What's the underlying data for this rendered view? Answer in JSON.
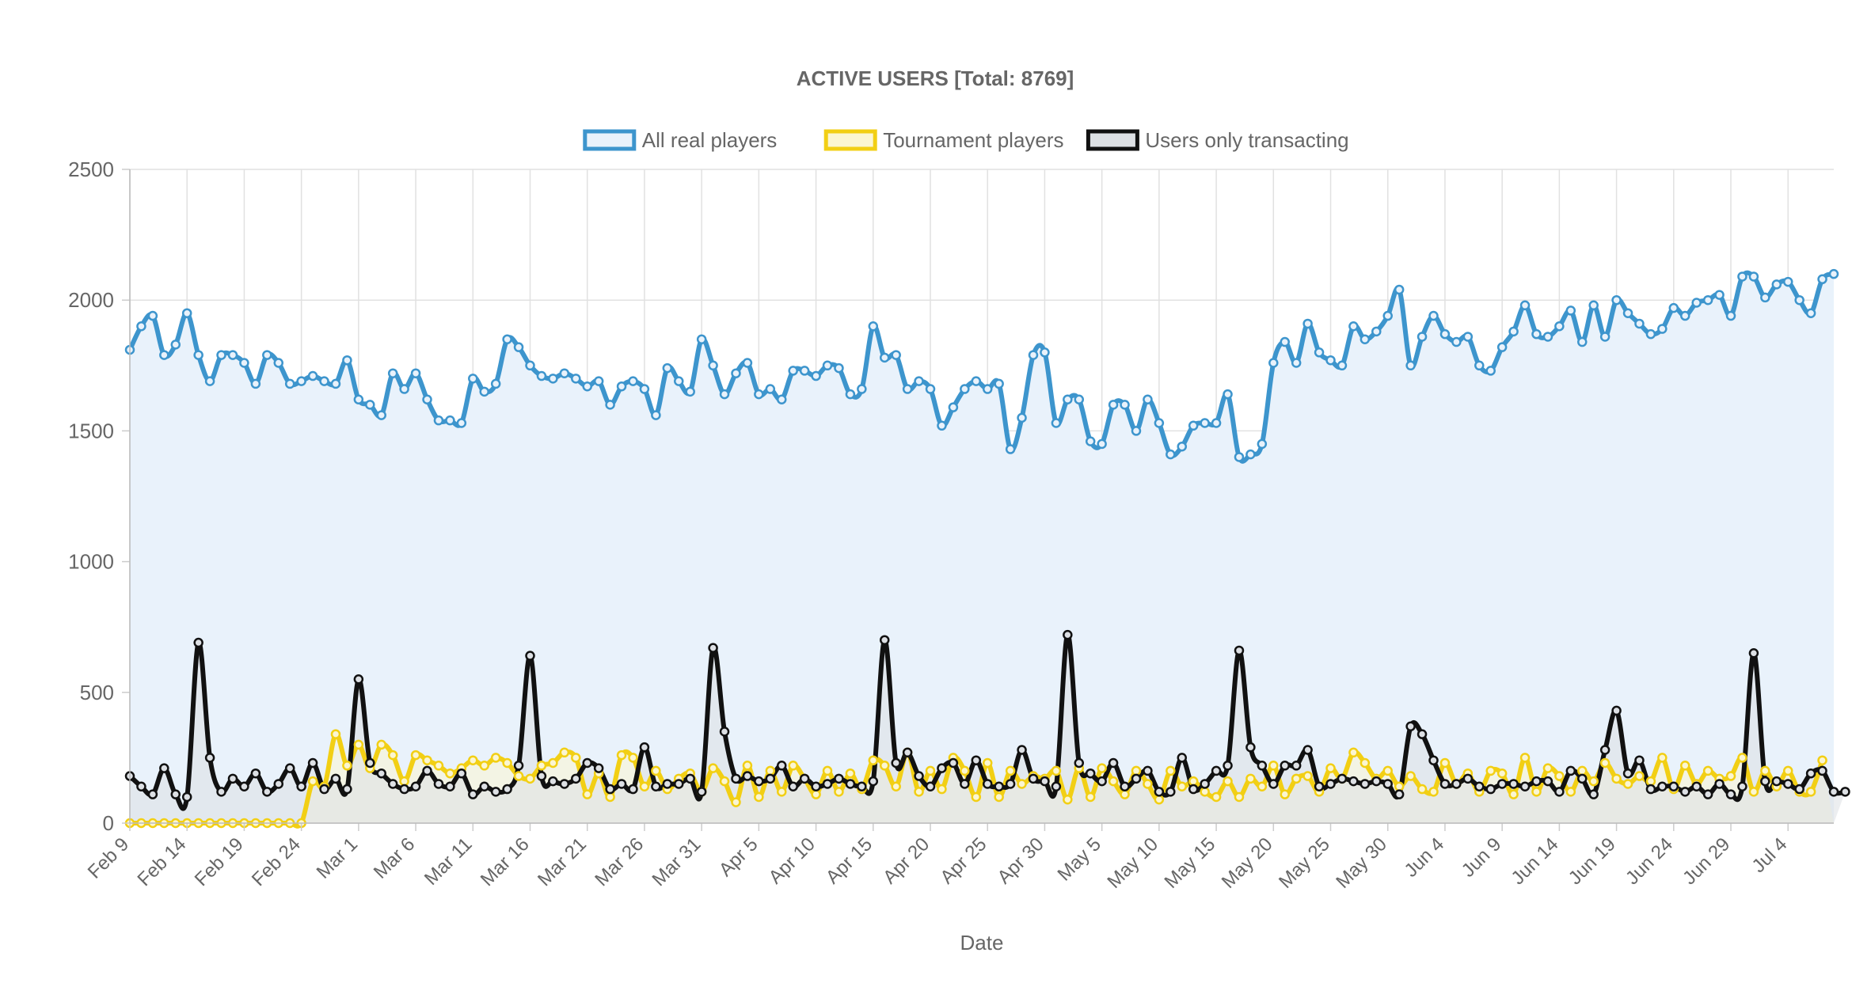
{
  "chart_data": {
    "type": "line",
    "title": "ACTIVE USERS [Total: 8769]",
    "xlabel": "Date",
    "ylabel": "",
    "ylim": [
      0,
      2500
    ],
    "yticks": [
      0,
      500,
      1000,
      1500,
      2000,
      2500
    ],
    "x_start": "2023-02-09",
    "x_tick_labels": [
      "Feb 9",
      "Feb 14",
      "Feb 19",
      "Feb 24",
      "Mar 1",
      "Mar 6",
      "Mar 11",
      "Mar 16",
      "Mar 21",
      "Mar 26",
      "Mar 31",
      "Apr 5",
      "Apr 10",
      "Apr 15",
      "Apr 20",
      "Apr 25",
      "Apr 30",
      "May 5",
      "May 10",
      "May 15",
      "May 20",
      "May 25",
      "May 30",
      "Jun 4",
      "Jun 9",
      "Jun 14",
      "Jun 19",
      "Jun 24",
      "Jun 29",
      "Jul 4"
    ],
    "grid": true,
    "legend_position": "top",
    "series": [
      {
        "name": "All real players",
        "color": "#3d95cd",
        "fill": "#e9f2fb",
        "values": [
          1810,
          1900,
          1940,
          1790,
          1830,
          1950,
          1790,
          1690,
          1790,
          1790,
          1760,
          1680,
          1790,
          1760,
          1680,
          1690,
          1710,
          1690,
          1680,
          1770,
          1620,
          1600,
          1560,
          1720,
          1660,
          1720,
          1620,
          1540,
          1540,
          1530,
          1700,
          1650,
          1680,
          1850,
          1820,
          1750,
          1710,
          1700,
          1720,
          1700,
          1670,
          1690,
          1600,
          1670,
          1690,
          1660,
          1560,
          1740,
          1690,
          1650,
          1850,
          1750,
          1640,
          1720,
          1760,
          1640,
          1660,
          1620,
          1730,
          1730,
          1710,
          1750,
          1740,
          1640,
          1660,
          1900,
          1780,
          1790,
          1660,
          1690,
          1660,
          1520,
          1590,
          1660,
          1690,
          1660,
          1680,
          1430,
          1550,
          1790,
          1800,
          1530,
          1620,
          1620,
          1460,
          1450,
          1600,
          1600,
          1500,
          1620,
          1530,
          1410,
          1440,
          1520,
          1530,
          1530,
          1640,
          1400,
          1410,
          1450,
          1760,
          1840,
          1760,
          1910,
          1800,
          1770,
          1750,
          1900,
          1850,
          1880,
          1940,
          2040,
          1750,
          1860,
          1940,
          1870,
          1840,
          1860,
          1750,
          1730,
          1820,
          1880,
          1980,
          1870,
          1860,
          1900,
          1960,
          1840,
          1980,
          1860,
          2000,
          1950,
          1910,
          1870,
          1890,
          1970,
          1940,
          1990,
          2000,
          2020,
          1940,
          2090,
          2090,
          2010,
          2060,
          2070,
          2000,
          1950,
          2080,
          2100
        ]
      },
      {
        "name": "Tournament players",
        "color": "#f2cf14",
        "fill": "#fbf6d1",
        "values": [
          0,
          0,
          0,
          0,
          0,
          0,
          0,
          0,
          0,
          0,
          0,
          0,
          0,
          0,
          0,
          0,
          160,
          140,
          340,
          220,
          300,
          210,
          300,
          260,
          160,
          260,
          240,
          220,
          190,
          210,
          240,
          220,
          250,
          230,
          180,
          170,
          220,
          230,
          270,
          250,
          110,
          190,
          100,
          260,
          250,
          140,
          200,
          130,
          170,
          190,
          120,
          210,
          160,
          80,
          220,
          100,
          200,
          120,
          220,
          170,
          110,
          200,
          120,
          190,
          130,
          240,
          220,
          140,
          270,
          120,
          200,
          130,
          250,
          200,
          100,
          230,
          100,
          200,
          150,
          180,
          170,
          200,
          90,
          210,
          100,
          210,
          160,
          110,
          200,
          150,
          90,
          200,
          140,
          160,
          120,
          100,
          160,
          100,
          170,
          140,
          220,
          110,
          170,
          180,
          120,
          210,
          170,
          270,
          230,
          170,
          200,
          140,
          180,
          130,
          120,
          230,
          150,
          190,
          120,
          200,
          190,
          110,
          250,
          120,
          210,
          180,
          120,
          200,
          160,
          230,
          170,
          150,
          180,
          160,
          250,
          130,
          220,
          150,
          200,
          170,
          180,
          250,
          120,
          200,
          140,
          200,
          120,
          120,
          240
        ]
      },
      {
        "name": "Users only transacting",
        "color": "#111111",
        "fill": "#dde0e4",
        "values": [
          180,
          140,
          110,
          210,
          110,
          100,
          690,
          250,
          120,
          170,
          140,
          190,
          120,
          150,
          210,
          140,
          230,
          130,
          170,
          130,
          550,
          230,
          190,
          150,
          130,
          140,
          200,
          150,
          140,
          190,
          110,
          140,
          120,
          130,
          220,
          640,
          180,
          160,
          150,
          170,
          230,
          210,
          130,
          150,
          130,
          290,
          140,
          150,
          150,
          170,
          120,
          670,
          350,
          170,
          180,
          160,
          170,
          220,
          140,
          170,
          140,
          150,
          170,
          150,
          140,
          160,
          700,
          230,
          270,
          180,
          140,
          210,
          230,
          150,
          240,
          150,
          140,
          150,
          280,
          170,
          160,
          140,
          720,
          230,
          190,
          160,
          230,
          140,
          170,
          200,
          120,
          120,
          250,
          130,
          150,
          200,
          220,
          660,
          290,
          220,
          150,
          220,
          220,
          280,
          140,
          150,
          170,
          160,
          150,
          160,
          150,
          110,
          370,
          340,
          240,
          150,
          150,
          170,
          140,
          130,
          150,
          150,
          140,
          160,
          160,
          120,
          200,
          170,
          110,
          280,
          430,
          190,
          240,
          130,
          140,
          140,
          120,
          140,
          110,
          150,
          110,
          140,
          650,
          160,
          160,
          150,
          130,
          190,
          200,
          120,
          120
        ]
      }
    ]
  }
}
